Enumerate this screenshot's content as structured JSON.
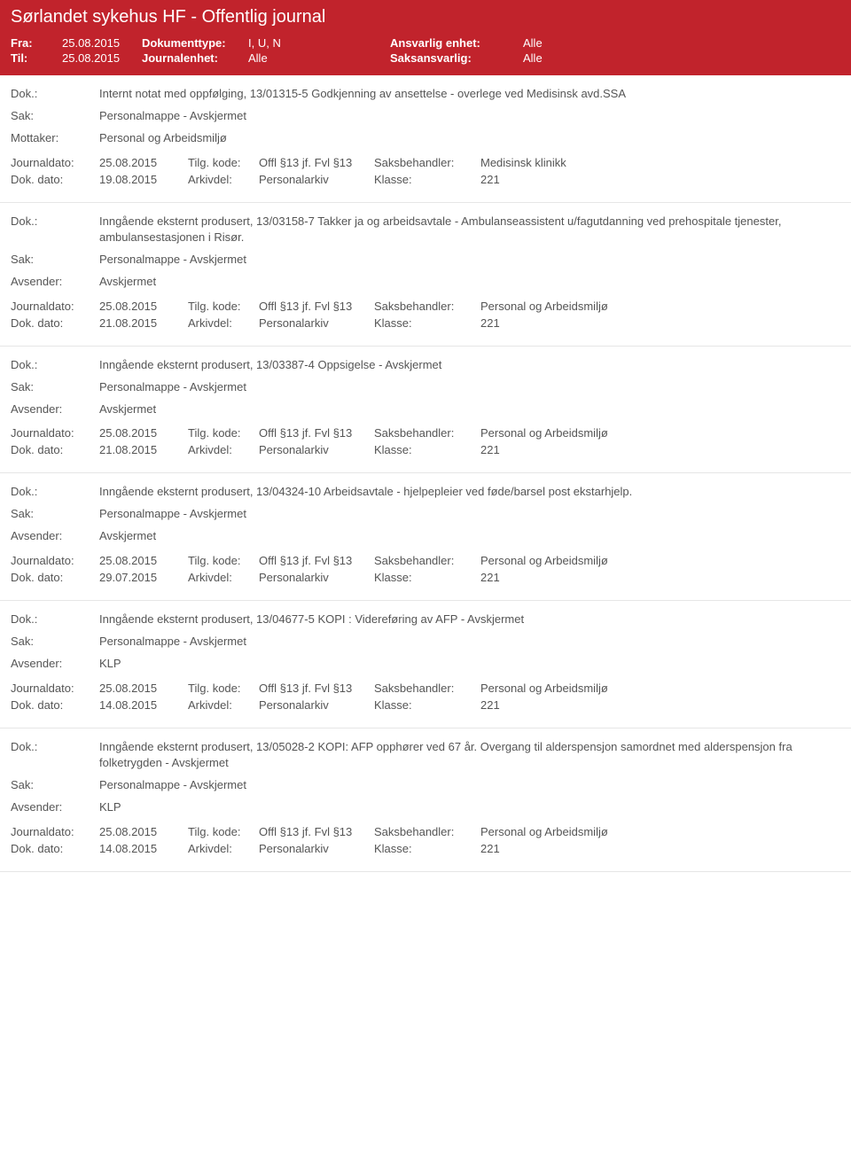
{
  "header": {
    "title": "Sørlandet sykehus HF - Offentlig journal",
    "fra_label": "Fra:",
    "fra_value": "25.08.2015",
    "til_label": "Til:",
    "til_value": "25.08.2015",
    "doktype_label": "Dokumenttype:",
    "doktype_value": "I, U, N",
    "journalenhet_label": "Journalenhet:",
    "journalenhet_value": "Alle",
    "ansvarlig_label": "Ansvarlig enhet:",
    "ansvarlig_value": "Alle",
    "saksansvarlig_label": "Saksansvarlig:",
    "saksansvarlig_value": "Alle"
  },
  "labels": {
    "dok": "Dok.:",
    "sak": "Sak:",
    "mottaker": "Mottaker:",
    "avsender": "Avsender:",
    "journaldato": "Journaldato:",
    "dokdato": "Dok. dato:",
    "tilgkode": "Tilg. kode:",
    "arkivdel": "Arkivdel:",
    "saksbehandler": "Saksbehandler:",
    "klasse": "Klasse:"
  },
  "entries": [
    {
      "dok": "Internt notat med oppfølging, 13/01315-5 Godkjenning av ansettelse - overlege ved Medisinsk avd.SSA",
      "sak": "Personalmappe - Avskjermet",
      "party_label": "Mottaker:",
      "party_value": "Personal og Arbeidsmiljø",
      "journaldato": "25.08.2015",
      "tilgkode": "Offl §13 jf. Fvl §13",
      "saksbehandler": "Medisinsk klinikk",
      "dokdato": "19.08.2015",
      "arkivdel": "Personalarkiv",
      "klasse": "221"
    },
    {
      "dok": "Inngående eksternt produsert, 13/03158-7 Takker ja og arbeidsavtale - Ambulanseassistent u/fagutdanning ved prehospitale tjenester, ambulansestasjonen i Risør.",
      "sak": "Personalmappe - Avskjermet",
      "party_label": "Avsender:",
      "party_value": "Avskjermet",
      "journaldato": "25.08.2015",
      "tilgkode": "Offl §13 jf. Fvl §13",
      "saksbehandler": "Personal og Arbeidsmiljø",
      "dokdato": "21.08.2015",
      "arkivdel": "Personalarkiv",
      "klasse": "221"
    },
    {
      "dok": "Inngående eksternt produsert, 13/03387-4 Oppsigelse - Avskjermet",
      "sak": "Personalmappe - Avskjermet",
      "party_label": "Avsender:",
      "party_value": "Avskjermet",
      "journaldato": "25.08.2015",
      "tilgkode": "Offl §13 jf. Fvl §13",
      "saksbehandler": "Personal og Arbeidsmiljø",
      "dokdato": "21.08.2015",
      "arkivdel": "Personalarkiv",
      "klasse": "221"
    },
    {
      "dok": "Inngående eksternt produsert, 13/04324-10 Arbeidsavtale - hjelpepleier ved føde/barsel post ekstarhjelp.",
      "sak": "Personalmappe - Avskjermet",
      "party_label": "Avsender:",
      "party_value": "Avskjermet",
      "journaldato": "25.08.2015",
      "tilgkode": "Offl §13 jf. Fvl §13",
      "saksbehandler": "Personal og Arbeidsmiljø",
      "dokdato": "29.07.2015",
      "arkivdel": "Personalarkiv",
      "klasse": "221"
    },
    {
      "dok": "Inngående eksternt produsert, 13/04677-5 KOPI : Videreføring av AFP - Avskjermet",
      "sak": "Personalmappe - Avskjermet",
      "party_label": "Avsender:",
      "party_value": "KLP",
      "journaldato": "25.08.2015",
      "tilgkode": "Offl §13 jf. Fvl §13",
      "saksbehandler": "Personal og Arbeidsmiljø",
      "dokdato": "14.08.2015",
      "arkivdel": "Personalarkiv",
      "klasse": "221"
    },
    {
      "dok": "Inngående eksternt produsert, 13/05028-2 KOPI: AFP opphører ved 67 år. Overgang til alderspensjon samordnet med alderspensjon fra folketrygden - Avskjermet",
      "sak": "Personalmappe - Avskjermet",
      "party_label": "Avsender:",
      "party_value": "KLP",
      "journaldato": "25.08.2015",
      "tilgkode": "Offl §13 jf. Fvl §13",
      "saksbehandler": "Personal og Arbeidsmiljø",
      "dokdato": "14.08.2015",
      "arkivdel": "Personalarkiv",
      "klasse": "221"
    }
  ],
  "colors": {
    "header_bg": "#c1232c",
    "header_text": "#ffffff",
    "body_text": "#555555",
    "divider": "#e6e6e6"
  }
}
